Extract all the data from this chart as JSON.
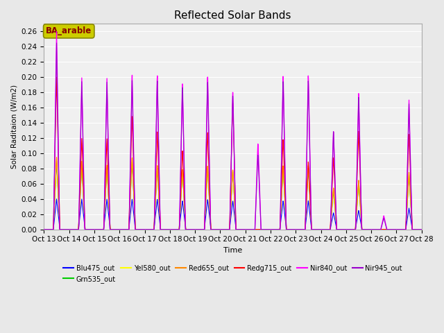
{
  "title": "Reflected Solar Bands",
  "xlabel": "Time",
  "ylabel": "Solar Raditaion (W/m2)",
  "legend_label": "BA_arable",
  "series_order": [
    "Blu475_out",
    "Grn535_out",
    "Yel580_out",
    "Red655_out",
    "Redg715_out",
    "Nir840_out",
    "Nir945_out"
  ],
  "series": {
    "Blu475_out": {
      "color": "#0000FF",
      "lw": 0.8
    },
    "Grn535_out": {
      "color": "#00CC00",
      "lw": 0.8
    },
    "Yel580_out": {
      "color": "#FFFF00",
      "lw": 0.8
    },
    "Red655_out": {
      "color": "#FF8800",
      "lw": 0.8
    },
    "Redg715_out": {
      "color": "#FF0000",
      "lw": 0.8
    },
    "Nir840_out": {
      "color": "#FF00FF",
      "lw": 1.0
    },
    "Nir945_out": {
      "color": "#9900CC",
      "lw": 0.8
    }
  },
  "ylim": [
    0,
    0.27
  ],
  "xlim": [
    0,
    15
  ],
  "background_color": "#e8e8e8",
  "plot_bg": "#f0f0f0",
  "title_fontsize": 11,
  "legend_box_color": "#cccc00",
  "legend_text_color": "#880000",
  "figsize": [
    6.4,
    4.8
  ],
  "dpi": 100
}
